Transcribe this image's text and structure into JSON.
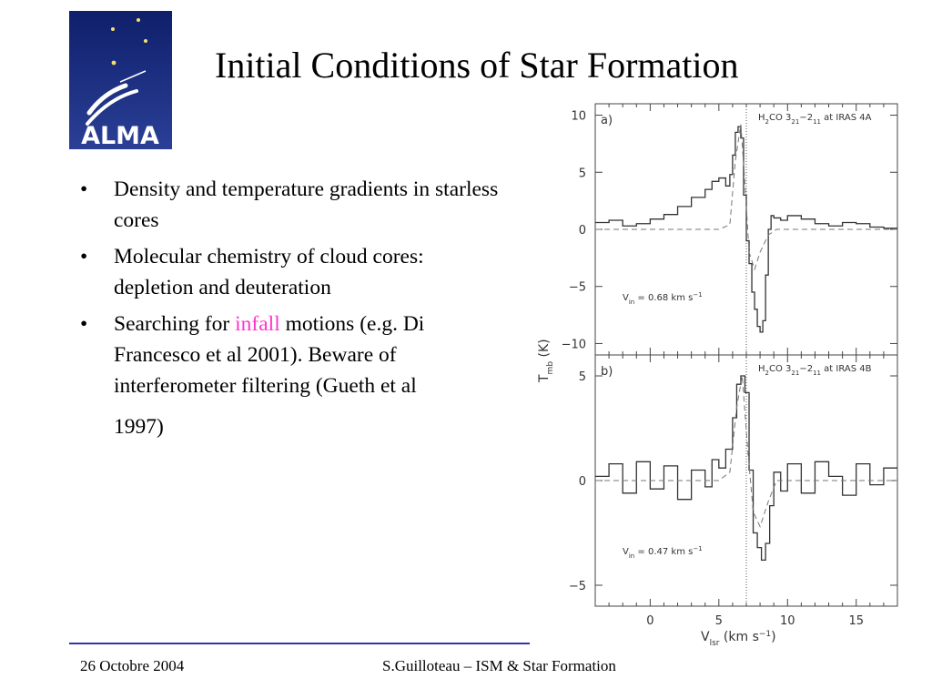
{
  "slide": {
    "logo_text": "ALMA",
    "title": "Initial Conditions of Star Formation",
    "bullets": {
      "b1": "Density and temperature gradients in starless cores",
      "b2": "Molecular chemistry of cloud cores: depletion and deuteration",
      "b3_pre": "Searching for ",
      "b3_highlight": "infall",
      "b3_post": " motions (e.g. Di Francesco et al 2001). Beware of interferometer filtering (Gueth et al",
      "b3_end": "1997)"
    },
    "footer": {
      "date": "26 Octobre 2004",
      "center": "S.Guilloteau – ISM & Star Formation"
    },
    "colors": {
      "highlight": "#ff33cc",
      "rule": "#3333aa",
      "logo_bg": "#1a2b7a"
    }
  },
  "chart_data": [
    {
      "type": "line",
      "panel_label": "a)",
      "line_title": "H2CO 3_21−2_11 at IRAS 4A",
      "annotation": "V_in = 0.68 km s^-1",
      "xlim": [
        -4,
        18
      ],
      "ylim": [
        -11,
        11
      ],
      "yticks": [
        10,
        5,
        0,
        -5,
        -10
      ],
      "ytick_labels": [
        "10",
        "5",
        "0",
        "−5",
        "−10"
      ],
      "vline_x": 7,
      "series": [
        {
          "style": "histogram",
          "x": [
            -4,
            -3,
            -2,
            -1,
            0,
            1,
            2,
            3,
            4,
            4.5,
            5,
            5.5,
            5.8,
            6,
            6.2,
            6.4,
            6.6,
            6.8,
            7,
            7.2,
            7.4,
            7.6,
            7.8,
            8,
            8.2,
            8.4,
            8.6,
            8.8,
            9,
            9.5,
            10,
            11,
            12,
            13,
            14,
            15,
            16,
            17,
            18
          ],
          "y": [
            0.6,
            0.8,
            0.3,
            0.5,
            0.9,
            1.3,
            2.0,
            2.8,
            3.5,
            4.2,
            4.5,
            3.8,
            4.8,
            6.5,
            8.5,
            9.0,
            8.0,
            3.0,
            -1,
            -3,
            -5.5,
            -7,
            -8.5,
            -9,
            -8,
            -4,
            0,
            1.2,
            1.0,
            0.8,
            1.2,
            0.9,
            0.5,
            0.3,
            0.6,
            0.5,
            0.2,
            0.1,
            0.3
          ]
        },
        {
          "style": "dashed model",
          "x": [
            -4,
            5,
            5.8,
            6.2,
            6.6,
            6.9,
            7.2,
            7.6,
            8,
            8.6,
            9.2,
            18
          ],
          "y": [
            0,
            0,
            0.4,
            6,
            9.2,
            4,
            -2,
            -3.5,
            -2,
            -0.5,
            0,
            0
          ]
        }
      ]
    },
    {
      "type": "line",
      "panel_label": "b)",
      "line_title": "H2CO 3_21−2_11 at IRAS 4B",
      "annotation": "V_in = 0.47 km s^-1",
      "xlim": [
        -4,
        18
      ],
      "ylim": [
        -6,
        6
      ],
      "yticks": [
        5,
        0,
        -5
      ],
      "ytick_labels": [
        "5",
        "0",
        "−5"
      ],
      "xticks": [
        0,
        5,
        10,
        15
      ],
      "xtick_labels": [
        "0",
        "5",
        "10",
        "15"
      ],
      "vline_x": 7,
      "series": [
        {
          "style": "histogram",
          "x": [
            -4,
            -3,
            -2,
            -1,
            0,
            1,
            2,
            3,
            4,
            4.5,
            5,
            5.5,
            6,
            6.3,
            6.6,
            6.9,
            7.2,
            7.5,
            7.8,
            8.1,
            8.4,
            8.7,
            9,
            9.5,
            10,
            11,
            12,
            13,
            14,
            15,
            16,
            17,
            18
          ],
          "y": [
            0.2,
            0.8,
            -0.6,
            0.9,
            -0.4,
            0.7,
            -0.9,
            0.5,
            -0.3,
            1.0,
            0.6,
            1.5,
            3.0,
            4.6,
            5.0,
            4.2,
            0.5,
            -2.5,
            -3.2,
            -3.8,
            -3.0,
            -1.2,
            0.4,
            -0.5,
            0.8,
            -0.6,
            0.9,
            0.2,
            -0.7,
            0.8,
            -0.2,
            0.6,
            0.1
          ]
        },
        {
          "style": "dashed model",
          "x": [
            -4,
            5,
            5.8,
            6.3,
            6.7,
            7.1,
            7.5,
            8,
            8.6,
            9.2,
            18
          ],
          "y": [
            0,
            0,
            0.4,
            3.5,
            5,
            1.5,
            -1.5,
            -2.2,
            -1,
            0,
            0
          ]
        }
      ]
    }
  ],
  "axes": {
    "xlabel": "V_lsr (km s^-1)",
    "ylabel": "T_mb (K)"
  }
}
